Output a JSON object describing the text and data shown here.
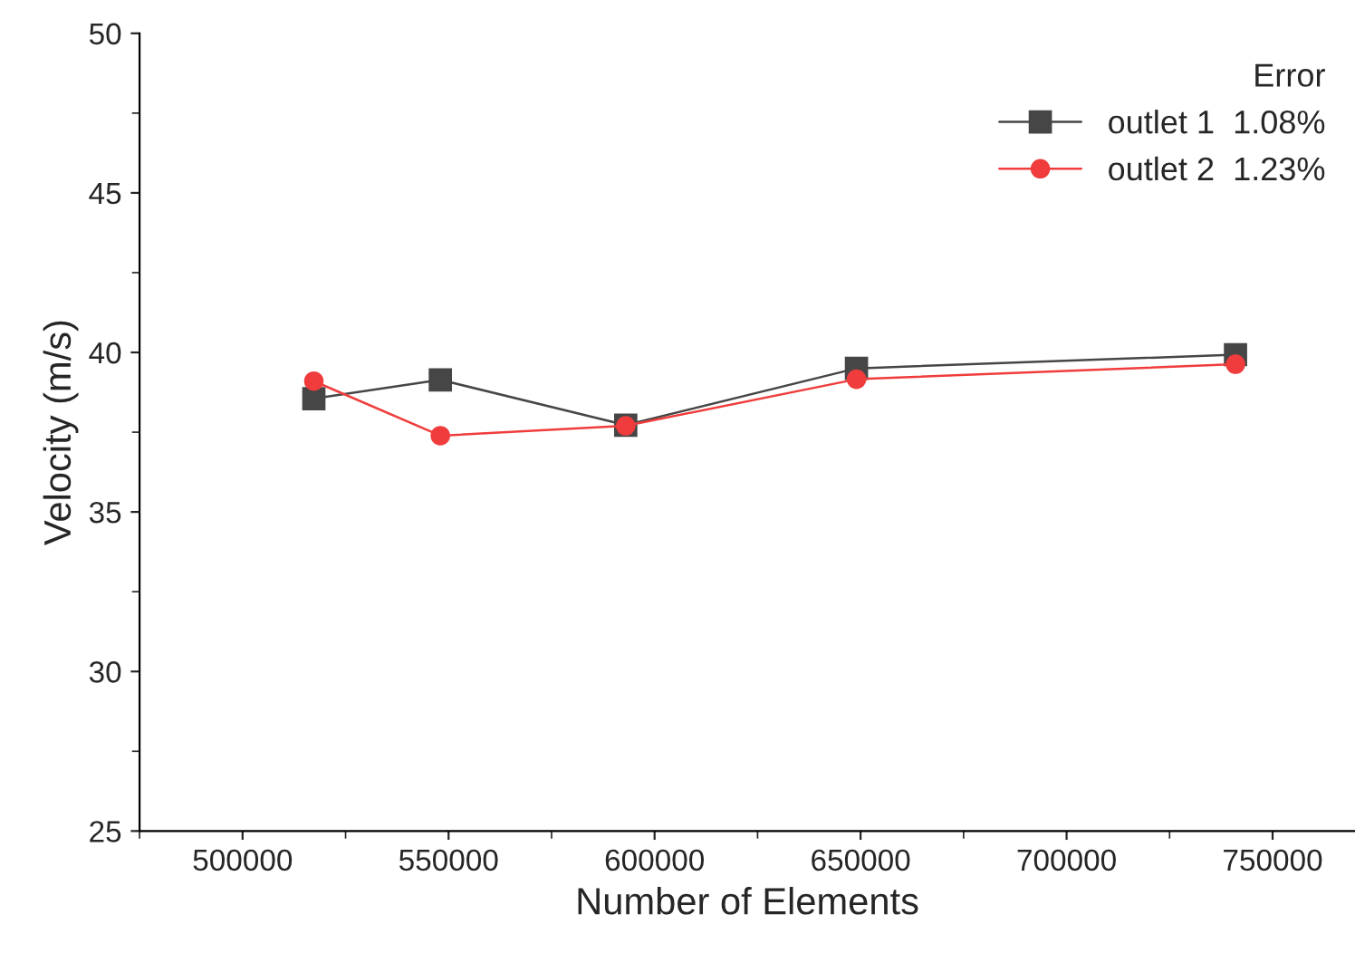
{
  "chart_data": {
    "type": "line",
    "xlabel": "Number of Elements",
    "ylabel": "Velocity (m/s)",
    "legend_title": "Error",
    "x": [
      517300,
      548000,
      593000,
      649000,
      741000
    ],
    "series": [
      {
        "name": "outlet 1  1.08%",
        "color": "#464646",
        "marker": "square",
        "values": [
          38.55,
          39.14,
          37.72,
          39.5,
          39.93
        ]
      },
      {
        "name": "outlet 2  1.23%",
        "color": "#f03c3c",
        "marker": "circle",
        "values": [
          39.1,
          37.39,
          37.7,
          39.16,
          39.63
        ]
      }
    ],
    "xlim": [
      475000,
      770000
    ],
    "xticks": [
      500000,
      550000,
      600000,
      650000,
      700000,
      750000
    ],
    "ylim": [
      25,
      50
    ],
    "yticks": [
      25,
      30,
      35,
      40,
      45,
      50
    ],
    "grid": false,
    "legend": "top right",
    "line_style": "solid"
  }
}
